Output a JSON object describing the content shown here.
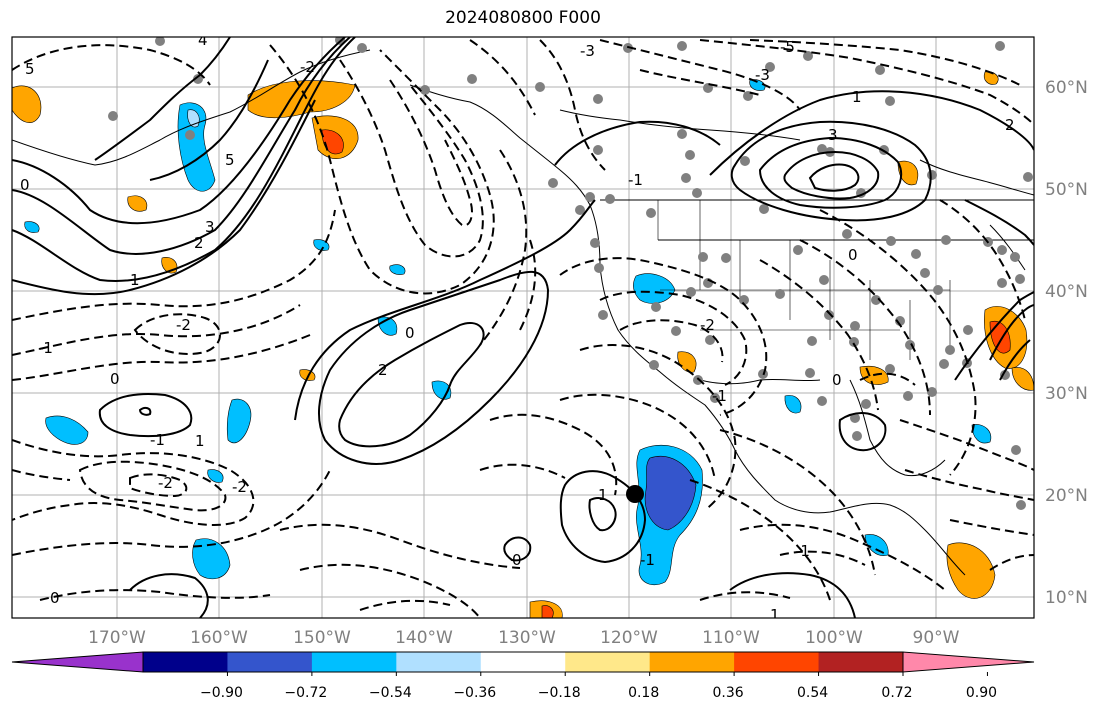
{
  "title": "2024080800 F000",
  "map": {
    "lon_ticks": [
      "170°W",
      "160°W",
      "150°W",
      "140°W",
      "130°W",
      "120°W",
      "110°W",
      "100°W",
      "90°W"
    ],
    "lat_ticks": [
      "60°N",
      "50°N",
      "40°N",
      "30°N",
      "20°N",
      "10°N"
    ],
    "contour_labels": [
      "5",
      "4",
      "3",
      "2",
      "1",
      "0",
      "-1",
      "-2",
      "-3",
      "-5",
      "0",
      "1",
      "2",
      "5",
      "3",
      "0",
      "-1",
      "-2",
      "1",
      "0",
      "-2",
      "-1",
      "0",
      "1",
      "2",
      "0",
      "-1",
      "-2",
      "1",
      "0",
      "-1",
      "-1",
      "-2",
      "-3"
    ]
  },
  "colorbar": {
    "ticks": [
      "−0.90",
      "−0.72",
      "−0.54",
      "−0.36",
      "−0.18",
      "0.18",
      "0.36",
      "0.54",
      "0.72",
      "0.90"
    ],
    "colors": [
      "#9932cc",
      "#00008b",
      "#3455cc",
      "#00bfff",
      "#b0e0ff",
      "#ffffff",
      "#ffe88a",
      "#ffa500",
      "#ff4500",
      "#b22222",
      "#ff88aa"
    ]
  }
}
